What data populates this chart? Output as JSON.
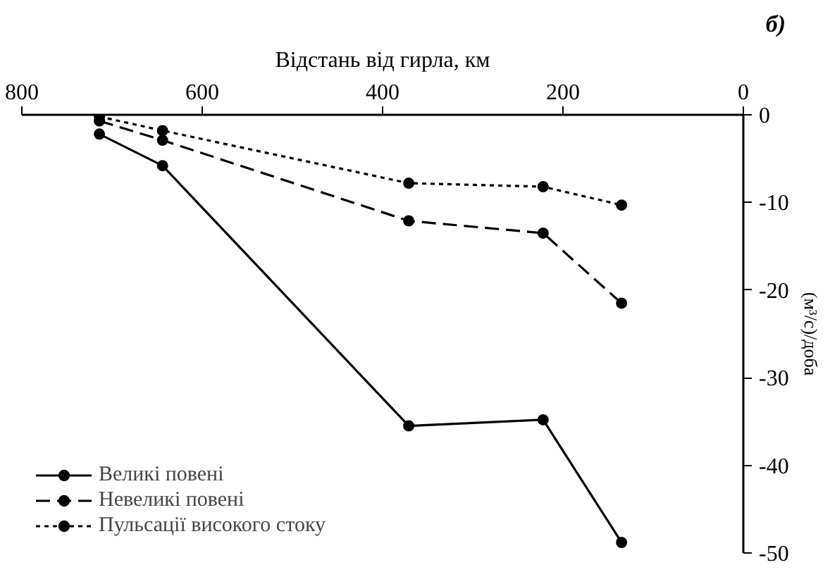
{
  "chart_data": {
    "type": "line",
    "xlabel": "Відстань від гирла, км",
    "ylabel": "(м³/с)/доба",
    "annotations": [
      "б)"
    ],
    "xlim": [
      800,
      0
    ],
    "xticks": [
      800,
      600,
      400,
      200,
      0
    ],
    "ylim": [
      -50,
      0
    ],
    "yticks": [
      0,
      -10,
      -20,
      -30,
      -40,
      -50
    ],
    "x": [
      714,
      644,
      371,
      222,
      135
    ],
    "series": [
      {
        "name": "Великі повені",
        "color": "#000000",
        "line_style": "solid",
        "values": [
          -2.2,
          -5.8,
          -35.5,
          -34.8,
          -48.8
        ]
      },
      {
        "name": "Невеликі повені",
        "color": "#000000",
        "line_style": "dashed",
        "values": [
          -0.7,
          -2.9,
          -12.1,
          -13.5,
          -21.5
        ]
      },
      {
        "name": "Пульсації високого стоку",
        "color": "#000000",
        "line_style": "dotted",
        "values": [
          -0.2,
          -1.8,
          -7.8,
          -8.2,
          -10.3
        ]
      }
    ],
    "marker": "circle",
    "grid": false,
    "legend": "bottom left"
  }
}
